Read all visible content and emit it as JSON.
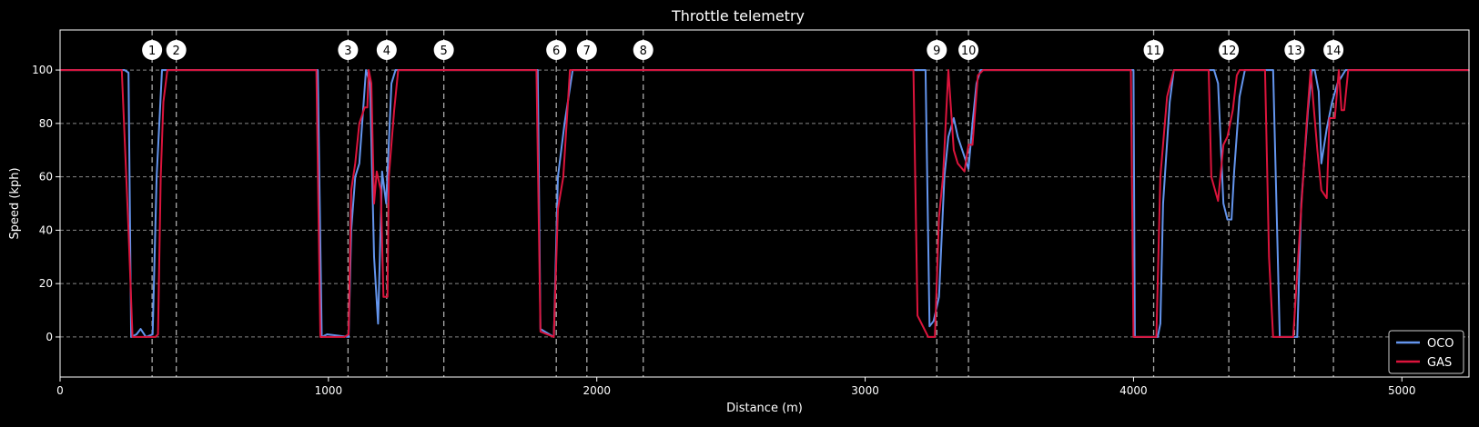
{
  "chart_data": {
    "type": "line",
    "title": "Throttle telemetry",
    "xlabel": "Distance (m)",
    "ylabel": "Speed (kph)",
    "xlim": [
      0,
      5250
    ],
    "ylim": [
      -15,
      115
    ],
    "xticks": [
      0,
      1000,
      2000,
      3000,
      4000,
      5000
    ],
    "yticks": [
      0,
      20,
      40,
      60,
      80,
      100
    ],
    "grid": "horizontal dashed",
    "legend_position": "bottom-right",
    "turn_markers": [
      {
        "label": "1",
        "x": 343
      },
      {
        "label": "2",
        "x": 433
      },
      {
        "label": "3",
        "x": 1073
      },
      {
        "label": "4",
        "x": 1217
      },
      {
        "label": "5",
        "x": 1430
      },
      {
        "label": "6",
        "x": 1849
      },
      {
        "label": "7",
        "x": 1963
      },
      {
        "label": "8",
        "x": 2173
      },
      {
        "label": "9",
        "x": 3267
      },
      {
        "label": "10",
        "x": 3385
      },
      {
        "label": "11",
        "x": 4075
      },
      {
        "label": "12",
        "x": 4355
      },
      {
        "label": "13",
        "x": 4600
      },
      {
        "label": "14",
        "x": 4745
      }
    ],
    "series": [
      {
        "name": "OCO",
        "color": "#6495ED",
        "points": [
          [
            0,
            100
          ],
          [
            240,
            100
          ],
          [
            255,
            99
          ],
          [
            265,
            0
          ],
          [
            285,
            1
          ],
          [
            300,
            3
          ],
          [
            320,
            0
          ],
          [
            345,
            1
          ],
          [
            360,
            60
          ],
          [
            380,
            100
          ],
          [
            960,
            100
          ],
          [
            975,
            0
          ],
          [
            995,
            1
          ],
          [
            1075,
            0
          ],
          [
            1085,
            40
          ],
          [
            1100,
            60
          ],
          [
            1115,
            65
          ],
          [
            1140,
            100
          ],
          [
            1155,
            95
          ],
          [
            1170,
            30
          ],
          [
            1185,
            5
          ],
          [
            1200,
            62
          ],
          [
            1215,
            50
          ],
          [
            1235,
            95
          ],
          [
            1250,
            100
          ],
          [
            1780,
            100
          ],
          [
            1790,
            3
          ],
          [
            1840,
            0
          ],
          [
            1855,
            60
          ],
          [
            1880,
            80
          ],
          [
            1910,
            100
          ],
          [
            3200,
            100
          ],
          [
            3225,
            100
          ],
          [
            3240,
            4
          ],
          [
            3255,
            6
          ],
          [
            3275,
            15
          ],
          [
            3295,
            60
          ],
          [
            3310,
            75
          ],
          [
            3330,
            82
          ],
          [
            3345,
            75
          ],
          [
            3385,
            63
          ],
          [
            3400,
            80
          ],
          [
            3415,
            95
          ],
          [
            3430,
            100
          ],
          [
            4000,
            100
          ],
          [
            4005,
            0
          ],
          [
            4090,
            0
          ],
          [
            4100,
            5
          ],
          [
            4110,
            50
          ],
          [
            4135,
            88
          ],
          [
            4150,
            100
          ],
          [
            4300,
            100
          ],
          [
            4315,
            95
          ],
          [
            4335,
            50
          ],
          [
            4350,
            44
          ],
          [
            4365,
            44
          ],
          [
            4375,
            62
          ],
          [
            4395,
            90
          ],
          [
            4415,
            100
          ],
          [
            4520,
            100
          ],
          [
            4545,
            0
          ],
          [
            4600,
            0
          ],
          [
            4610,
            0
          ],
          [
            4625,
            50
          ],
          [
            4650,
            85
          ],
          [
            4665,
            100
          ],
          [
            4675,
            100
          ],
          [
            4690,
            92
          ],
          [
            4700,
            65
          ],
          [
            4720,
            78
          ],
          [
            4740,
            88
          ],
          [
            4760,
            95
          ],
          [
            4790,
            100
          ],
          [
            5250,
            100
          ]
        ]
      },
      {
        "name": "GAS",
        "color": "#DC143C",
        "points": [
          [
            0,
            100
          ],
          [
            230,
            100
          ],
          [
            255,
            40
          ],
          [
            270,
            0
          ],
          [
            340,
            0
          ],
          [
            355,
            0
          ],
          [
            365,
            1
          ],
          [
            375,
            60
          ],
          [
            385,
            88
          ],
          [
            400,
            100
          ],
          [
            955,
            100
          ],
          [
            970,
            0
          ],
          [
            1060,
            0
          ],
          [
            1075,
            1
          ],
          [
            1085,
            55
          ],
          [
            1100,
            65
          ],
          [
            1115,
            80
          ],
          [
            1135,
            86
          ],
          [
            1145,
            86
          ],
          [
            1150,
            100
          ],
          [
            1160,
            95
          ],
          [
            1170,
            50
          ],
          [
            1180,
            62
          ],
          [
            1195,
            55
          ],
          [
            1205,
            15
          ],
          [
            1220,
            15
          ],
          [
            1225,
            60
          ],
          [
            1245,
            85
          ],
          [
            1260,
            100
          ],
          [
            1775,
            100
          ],
          [
            1790,
            2
          ],
          [
            1840,
            0
          ],
          [
            1855,
            48
          ],
          [
            1875,
            60
          ],
          [
            1900,
            100
          ],
          [
            3180,
            100
          ],
          [
            3195,
            8
          ],
          [
            3235,
            0
          ],
          [
            3260,
            0
          ],
          [
            3275,
            45
          ],
          [
            3290,
            60
          ],
          [
            3310,
            100
          ],
          [
            3330,
            70
          ],
          [
            3345,
            65
          ],
          [
            3370,
            62
          ],
          [
            3385,
            72
          ],
          [
            3400,
            72
          ],
          [
            3420,
            98
          ],
          [
            3440,
            100
          ],
          [
            3990,
            100
          ],
          [
            4000,
            0
          ],
          [
            4085,
            0
          ],
          [
            4100,
            60
          ],
          [
            4125,
            90
          ],
          [
            4150,
            100
          ],
          [
            4280,
            100
          ],
          [
            4290,
            60
          ],
          [
            4315,
            51
          ],
          [
            4335,
            72
          ],
          [
            4350,
            75
          ],
          [
            4370,
            85
          ],
          [
            4385,
            98
          ],
          [
            4395,
            100
          ],
          [
            4490,
            100
          ],
          [
            4505,
            30
          ],
          [
            4520,
            0
          ],
          [
            4595,
            0
          ],
          [
            4620,
            40
          ],
          [
            4645,
            80
          ],
          [
            4660,
            100
          ],
          [
            4685,
            70
          ],
          [
            4700,
            55
          ],
          [
            4720,
            52
          ],
          [
            4730,
            82
          ],
          [
            4750,
            82
          ],
          [
            4765,
            100
          ],
          [
            4775,
            85
          ],
          [
            4785,
            85
          ],
          [
            4800,
            100
          ],
          [
            5250,
            100
          ]
        ]
      }
    ]
  }
}
